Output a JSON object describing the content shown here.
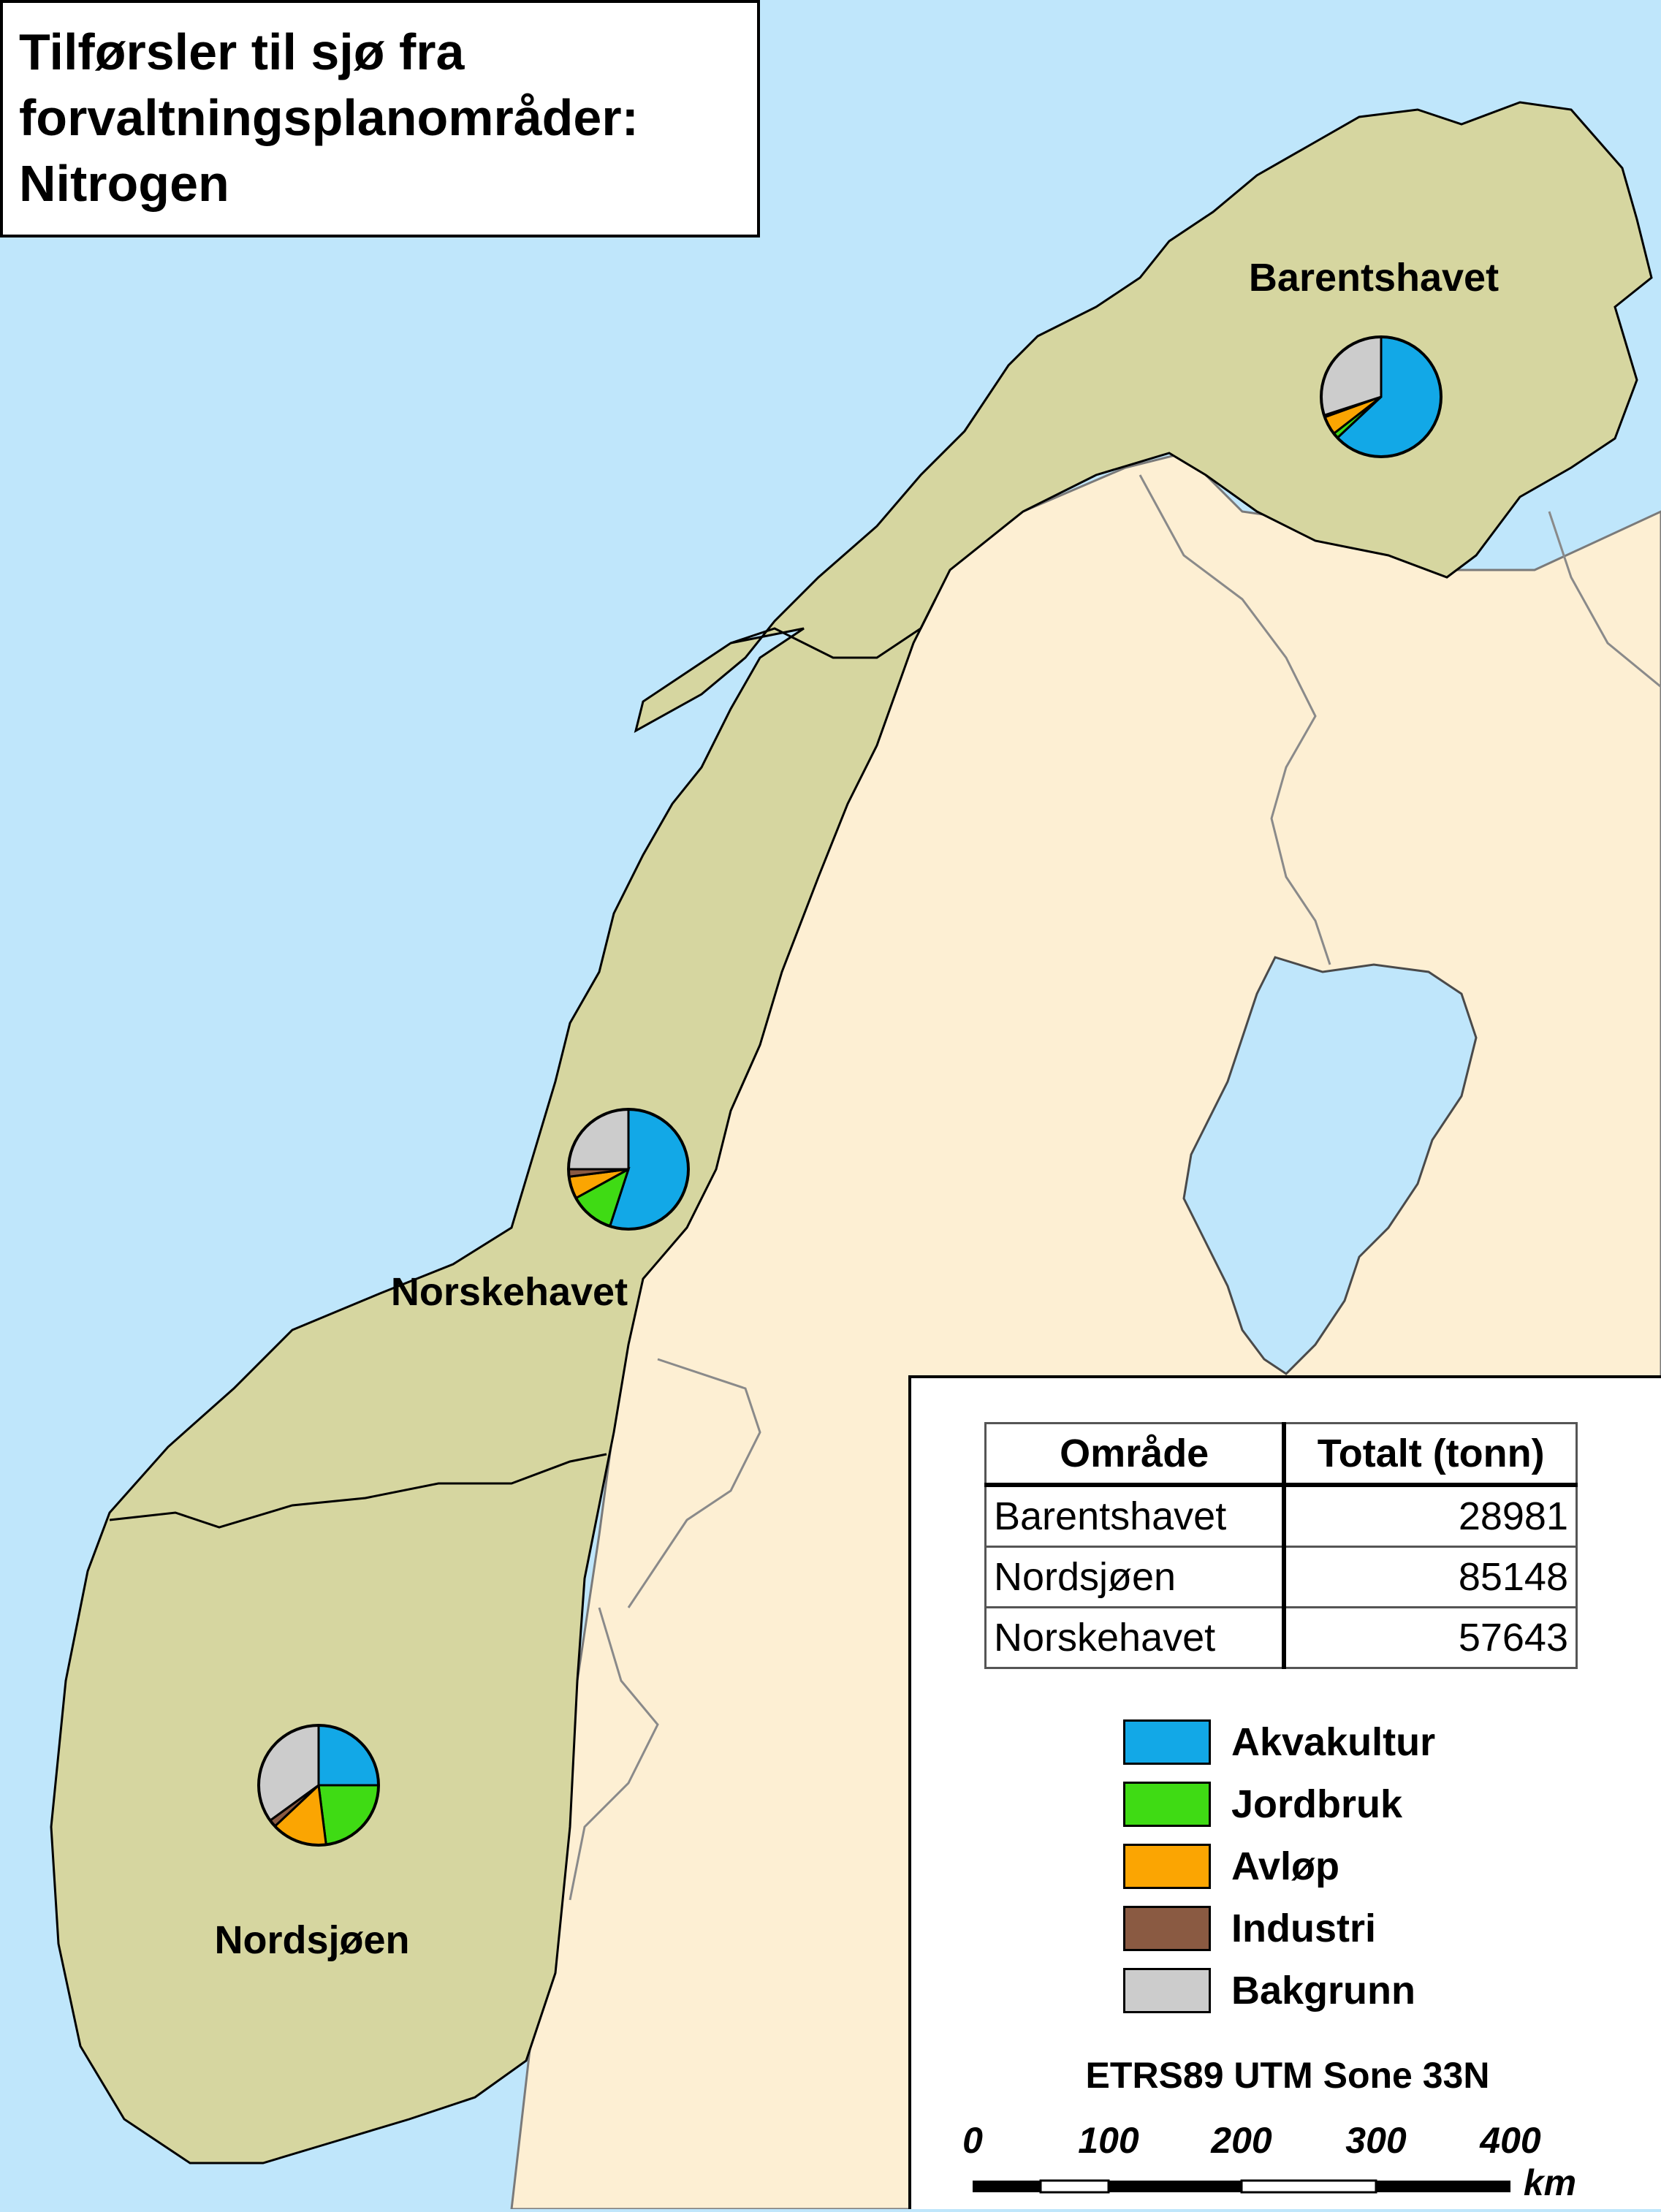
{
  "title": {
    "line1": "Tilførsler til sjø fra",
    "line2": "forvaltningsplanområder:",
    "line3": "Nitrogen"
  },
  "regions": [
    {
      "name": "Barentshavet",
      "shares": [
        0.63,
        0.015,
        0.05,
        0.005,
        0.3
      ]
    },
    {
      "name": "Norskehavet",
      "shares": [
        0.55,
        0.12,
        0.06,
        0.02,
        0.25
      ]
    },
    {
      "name": "Nordsjøen",
      "shares": [
        0.25,
        0.23,
        0.15,
        0.02,
        0.35
      ]
    }
  ],
  "colors": {
    "sea": "#bfe6fb",
    "norway": "#d6d6a0",
    "land": "#fdefd3",
    "Akvakultur": "#12a8e7",
    "Jordbruk": "#3fdb14",
    "Avløp": "#fba502",
    "Industri": "#8a5a42",
    "Bakgrunn": "#cccccc"
  },
  "table": {
    "headers": [
      "Område",
      "Totalt (tonn)"
    ],
    "rows": [
      [
        "Barentshavet",
        "28981"
      ],
      [
        "Nordsjøen",
        "85148"
      ],
      [
        "Norskehavet",
        "57643"
      ]
    ]
  },
  "legend": {
    "items": [
      {
        "label": "Akvakultur",
        "color": "#12a8e7"
      },
      {
        "label": "Jordbruk",
        "color": "#3fdb14"
      },
      {
        "label": "Avløp",
        "color": "#fba502"
      },
      {
        "label": "Industri",
        "color": "#8a5a42"
      },
      {
        "label": "Bakgrunn",
        "color": "#cccccc"
      }
    ]
  },
  "projection": "ETRS89 UTM Sone 33N",
  "scale": {
    "ticks": [
      "0",
      "100",
      "200",
      "300",
      "400"
    ],
    "unit": "km"
  }
}
